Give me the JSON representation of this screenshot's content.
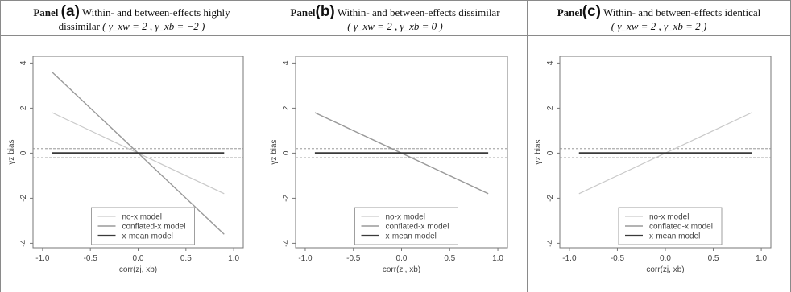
{
  "panels": [
    {
      "prefix": "Panel",
      "letter": "(a)",
      "description": "Within- and between-effects highly",
      "description2": "dissimilar",
      "params": "( γ_xw = 2 ,  γ_xb = −2 )",
      "chart_data": {
        "type": "line",
        "xlabel": "corr(zj, xb)",
        "ylabel": "γz bias",
        "xlim": [
          -1.1,
          1.1
        ],
        "ylim": [
          -4.2,
          4.3
        ],
        "x_ticks": [
          "-1.0",
          "-0.5",
          "0.0",
          "0.5",
          "1.0"
        ],
        "y_ticks": [
          "4",
          "2",
          "0",
          "-2",
          "-4"
        ],
        "reference_lines": [
          0.2,
          -0.2
        ],
        "series": [
          {
            "name": "no-x model",
            "color": "#c9c9c9",
            "x": [
              -0.9,
              0.9
            ],
            "y": [
              1.8,
              -1.8
            ]
          },
          {
            "name": "conflated-x model",
            "color": "#9a9a9a",
            "x": [
              -0.9,
              0.9
            ],
            "y": [
              3.6,
              -3.6
            ]
          },
          {
            "name": "x-mean model",
            "color": "#3a3a3a",
            "x": [
              -0.9,
              0.9
            ],
            "y": [
              0.0,
              0.0
            ]
          }
        ],
        "legend": "bottom-center"
      }
    },
    {
      "prefix": "Panel",
      "letter": "(b)",
      "description": "Within- and between-effects dissimilar",
      "description2": "",
      "params": "( γ_xw = 2 ,  γ_xb = 0 )",
      "chart_data": {
        "type": "line",
        "xlabel": "corr(zj, xb)",
        "ylabel": "γz bias",
        "xlim": [
          -1.1,
          1.1
        ],
        "ylim": [
          -4.2,
          4.3
        ],
        "x_ticks": [
          "-1.0",
          "-0.5",
          "0.0",
          "0.5",
          "1.0"
        ],
        "y_ticks": [
          "4",
          "2",
          "0",
          "-2",
          "-4"
        ],
        "reference_lines": [
          0.2,
          -0.2
        ],
        "series": [
          {
            "name": "no-x model",
            "color": "#c9c9c9",
            "x": [
              -0.9,
              0.9
            ],
            "y": [
              1.8,
              -1.8
            ]
          },
          {
            "name": "conflated-x model",
            "color": "#9a9a9a",
            "x": [
              -0.9,
              0.9
            ],
            "y": [
              1.8,
              -1.8
            ]
          },
          {
            "name": "x-mean model",
            "color": "#3a3a3a",
            "x": [
              -0.9,
              0.9
            ],
            "y": [
              0.0,
              0.0
            ]
          }
        ],
        "legend": "bottom-center"
      }
    },
    {
      "prefix": "Panel",
      "letter": "(c)",
      "description": "Within- and between-effects identical",
      "description2": "",
      "params": "( γ_xw = 2 ,  γ_xb = 2 )",
      "chart_data": {
        "type": "line",
        "xlabel": "corr(zj, xb)",
        "ylabel": "γz bias",
        "xlim": [
          -1.1,
          1.1
        ],
        "ylim": [
          -4.2,
          4.3
        ],
        "x_ticks": [
          "-1.0",
          "-0.5",
          "0.0",
          "0.5",
          "1.0"
        ],
        "y_ticks": [
          "4",
          "2",
          "0",
          "-2",
          "-4"
        ],
        "reference_lines": [
          0.2,
          -0.2
        ],
        "series": [
          {
            "name": "no-x model",
            "color": "#c9c9c9",
            "x": [
              -0.9,
              0.9
            ],
            "y": [
              -1.8,
              1.8
            ]
          },
          {
            "name": "conflated-x model",
            "color": "#9a9a9a",
            "x": [
              -0.9,
              0.9
            ],
            "y": [
              0.0,
              0.0
            ]
          },
          {
            "name": "x-mean model",
            "color": "#3a3a3a",
            "x": [
              -0.9,
              0.9
            ],
            "y": [
              0.0,
              0.0
            ]
          }
        ],
        "legend": "bottom-center"
      }
    }
  ]
}
